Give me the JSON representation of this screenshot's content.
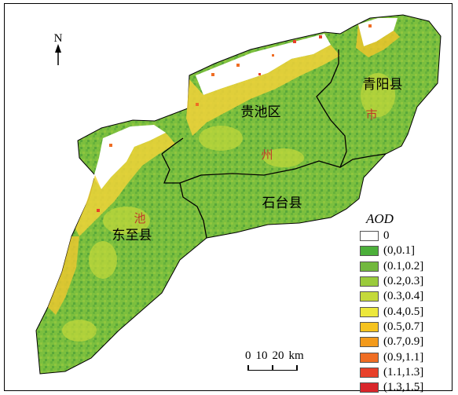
{
  "map": {
    "north_label": "N",
    "districts": [
      {
        "id": "guichi",
        "name": "贵池区"
      },
      {
        "id": "qingyang",
        "name": "青阳县"
      },
      {
        "id": "shitai",
        "name": "石台县"
      },
      {
        "id": "dongzhi",
        "name": "东至县"
      }
    ],
    "city_name_chars": [
      "池",
      "州",
      "市"
    ]
  },
  "legend": {
    "title": "AOD",
    "classes": [
      {
        "label": "0",
        "color": "#ffffff"
      },
      {
        "label": "(0,0.1]",
        "color": "#4caf3a"
      },
      {
        "label": "(0.1,0.2]",
        "color": "#72b83e"
      },
      {
        "label": "(0.2,0.3]",
        "color": "#9acb3c"
      },
      {
        "label": "(0.3,0.4]",
        "color": "#c4d93a"
      },
      {
        "label": "(0.4,0.5]",
        "color": "#ece83b"
      },
      {
        "label": "(0.5,0.7]",
        "color": "#f5c31f"
      },
      {
        "label": "(0.7,0.9]",
        "color": "#f39a1b"
      },
      {
        "label": "(0.9,1.1]",
        "color": "#ef6d24"
      },
      {
        "label": "(1.1,1.3]",
        "color": "#e8402a"
      },
      {
        "label": "(1.3,1.5]",
        "color": "#d9262b"
      }
    ]
  },
  "scale": {
    "labels": [
      "0",
      "10",
      "20"
    ],
    "unit": "km"
  }
}
